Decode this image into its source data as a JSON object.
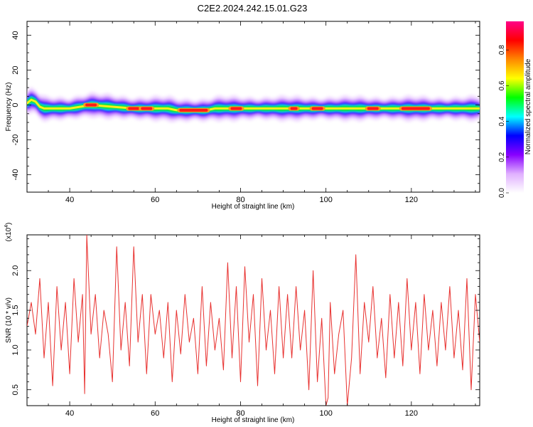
{
  "title": "C2E2.2024.242.15.01.G23",
  "chart_data": [
    {
      "type": "heatmap",
      "title": "C2E2.2024.242.15.01.G23",
      "xlabel": "Height of straight line (km)",
      "ylabel": "Frequency (Hz)",
      "xlim": [
        30,
        136
      ],
      "ylim": [
        -50,
        48
      ],
      "x_ticks": [
        40,
        60,
        80,
        100,
        120
      ],
      "y_ticks": [
        40,
        20,
        0,
        -20,
        -40
      ],
      "colorbar": {
        "label": "Normalized spectral amplitude",
        "range": [
          0,
          0.96
        ],
        "ticks": [
          "0.0",
          "0.2",
          "0.4",
          "0.6",
          "0.8"
        ],
        "colors": [
          "#ffffff",
          "#e0b0ff",
          "#8800ff",
          "#0000ff",
          "#00ffff",
          "#00ff00",
          "#ffff00",
          "#ff8800",
          "#ff0000",
          "#ff0088"
        ]
      },
      "ridge": {
        "x": [
          30,
          31,
          32,
          33,
          34,
          36,
          40,
          45,
          50,
          55,
          60,
          63,
          65,
          70,
          72,
          74,
          80,
          90,
          100,
          110,
          120,
          130,
          136
        ],
        "frequency": [
          1,
          3,
          2,
          -1,
          -2,
          -2,
          -2,
          0,
          -1,
          -2,
          -2,
          -2,
          -3,
          -3,
          -3,
          -2,
          -2,
          -2,
          -2,
          -2,
          -2,
          -2,
          -2
        ]
      },
      "peaks": [
        {
          "x1": 44,
          "x2": 46,
          "frequency": 0
        },
        {
          "x1": 54,
          "x2": 56,
          "frequency": -2
        },
        {
          "x1": 57,
          "x2": 59,
          "frequency": -2
        },
        {
          "x1": 66,
          "x2": 72,
          "frequency": -3
        },
        {
          "x1": 78,
          "x2": 80,
          "frequency": -2
        },
        {
          "x1": 92,
          "x2": 93,
          "frequency": -2
        },
        {
          "x1": 97,
          "x2": 99,
          "frequency": -2
        },
        {
          "x1": 110,
          "x2": 112,
          "frequency": -2
        },
        {
          "x1": 118,
          "x2": 124,
          "frequency": -2
        }
      ]
    },
    {
      "type": "line",
      "xlabel": "Height of straight line (km)",
      "ylabel": "SNR (10 * v/v)",
      "yunit": "(x10",
      "yunit_exp": "4",
      "yunit_close": ")",
      "xlim": [
        30,
        136
      ],
      "ylim": [
        0.3,
        2.45
      ],
      "x_ticks": [
        40,
        60,
        80,
        100,
        120
      ],
      "y_ticks": [
        "2.0",
        "1.5",
        "1.0",
        "0.5"
      ],
      "series": [
        {
          "color": "#e8312f",
          "x": [
            30,
            31,
            32,
            33,
            34,
            35,
            36,
            37,
            38,
            39,
            40,
            41,
            42,
            43,
            43.5,
            44,
            45,
            46,
            47,
            48,
            49,
            50,
            51,
            52,
            53,
            54,
            55,
            56,
            57,
            58,
            59,
            60,
            61,
            62,
            63,
            64,
            65,
            66,
            67,
            68,
            69,
            70,
            71,
            72,
            73,
            74,
            75,
            76,
            77,
            78,
            79,
            80,
            81,
            82,
            83,
            84,
            85,
            86,
            87,
            88,
            89,
            90,
            91,
            92,
            93,
            94,
            95,
            96,
            97,
            98,
            99,
            100,
            100.5,
            101,
            102,
            103,
            104,
            105,
            106,
            107,
            108,
            109,
            110,
            111,
            112,
            113,
            114,
            115,
            116,
            117,
            118,
            119,
            120,
            121,
            122,
            123,
            124,
            125,
            126,
            127,
            128,
            129,
            130,
            131,
            132,
            133,
            134,
            135,
            136
          ],
          "values": [
            1.3,
            1.6,
            1.2,
            1.9,
            0.9,
            1.6,
            0.55,
            1.8,
            1.0,
            1.6,
            0.7,
            1.9,
            1.1,
            1.7,
            0.45,
            2.45,
            1.2,
            1.7,
            0.9,
            1.5,
            1.2,
            0.6,
            2.3,
            1.0,
            1.6,
            0.8,
            2.3,
            1.1,
            1.7,
            0.7,
            1.7,
            1.2,
            1.5,
            0.9,
            1.6,
            0.6,
            1.5,
            0.95,
            1.7,
            1.1,
            1.4,
            0.7,
            1.8,
            0.8,
            1.6,
            1.0,
            1.4,
            0.75,
            2.1,
            0.9,
            1.8,
            0.6,
            2.05,
            1.1,
            1.7,
            0.55,
            1.9,
            1.0,
            1.5,
            0.7,
            1.8,
            0.9,
            1.7,
            0.9,
            1.8,
            1.0,
            1.5,
            0.5,
            2.0,
            0.6,
            1.4,
            0.3,
            0.4,
            1.6,
            0.7,
            1.2,
            1.5,
            0.3,
            0.9,
            2.2,
            0.7,
            1.6,
            1.1,
            1.8,
            0.9,
            1.4,
            0.65,
            1.7,
            0.9,
            1.6,
            0.8,
            1.9,
            1.0,
            1.6,
            0.7,
            1.7,
            1.0,
            1.5,
            0.8,
            1.6,
            1.0,
            1.8,
            0.9,
            1.5,
            0.75,
            1.9,
            0.5,
            1.7,
            1.1
          ]
        }
      ]
    }
  ]
}
